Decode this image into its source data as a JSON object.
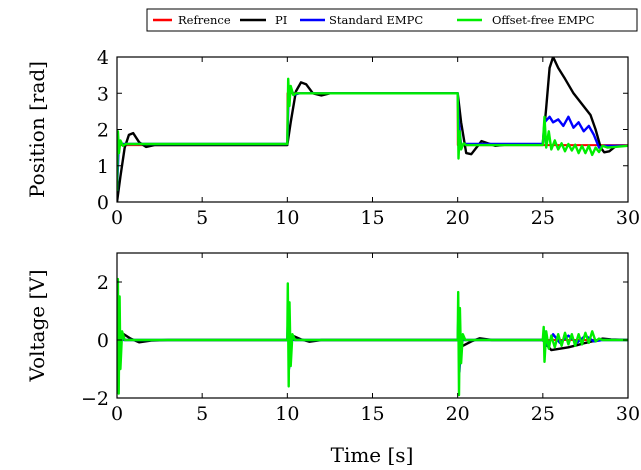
{
  "chart_data": [
    {
      "type": "line",
      "panel": "top",
      "xlabel": "",
      "ylabel": "Position [rad]",
      "xlim": [
        0,
        30
      ],
      "ylim": [
        0,
        4
      ],
      "xticks": [
        "0",
        "5",
        "10",
        "15",
        "20",
        "25",
        "30"
      ],
      "yticks": [
        "0",
        "1",
        "2",
        "3",
        "4"
      ],
      "grid": false,
      "legend_position": "top",
      "series": [
        {
          "name": "Refrence",
          "color": "#ff0000",
          "points": [
            [
              0,
              0
            ],
            [
              0.01,
              1.57
            ],
            [
              10,
              1.57
            ],
            [
              10.01,
              3.0
            ],
            [
              20,
              3.0
            ],
            [
              20.01,
              1.57
            ],
            [
              30,
              1.57
            ]
          ]
        },
        {
          "name": "PI",
          "color": "#000000",
          "points": [
            [
              0,
              0
            ],
            [
              0.2,
              0.7
            ],
            [
              0.45,
              1.5
            ],
            [
              0.7,
              1.85
            ],
            [
              0.95,
              1.9
            ],
            [
              1.3,
              1.65
            ],
            [
              1.7,
              1.52
            ],
            [
              2.2,
              1.57
            ],
            [
              10,
              1.57
            ],
            [
              10.2,
              2.2
            ],
            [
              10.5,
              3.05
            ],
            [
              10.8,
              3.3
            ],
            [
              11.1,
              3.25
            ],
            [
              11.5,
              3.0
            ],
            [
              12.0,
              2.94
            ],
            [
              12.5,
              3.0
            ],
            [
              20,
              3.0
            ],
            [
              20.2,
              2.2
            ],
            [
              20.5,
              1.35
            ],
            [
              20.8,
              1.32
            ],
            [
              21.1,
              1.5
            ],
            [
              21.4,
              1.68
            ],
            [
              21.7,
              1.63
            ],
            [
              22.2,
              1.55
            ],
            [
              22.8,
              1.58
            ],
            [
              25,
              1.58
            ],
            [
              25.2,
              2.6
            ],
            [
              25.4,
              3.7
            ],
            [
              25.6,
              4.0
            ],
            [
              25.9,
              3.7
            ],
            [
              26.3,
              3.4
            ],
            [
              26.8,
              3.0
            ],
            [
              27.3,
              2.7
            ],
            [
              27.8,
              2.4
            ],
            [
              28.1,
              2.0
            ],
            [
              28.4,
              1.5
            ],
            [
              28.6,
              1.37
            ],
            [
              28.9,
              1.4
            ],
            [
              29.3,
              1.55
            ],
            [
              30,
              1.55
            ]
          ]
        },
        {
          "name": "Standard EMPC",
          "color": "#0000ff",
          "points": [
            [
              0,
              0.3
            ],
            [
              0.1,
              1.6
            ],
            [
              10,
              1.6
            ],
            [
              10.05,
              2.6
            ],
            [
              10.2,
              3.1
            ],
            [
              10.4,
              2.96
            ],
            [
              10.7,
              3.0
            ],
            [
              20,
              3.0
            ],
            [
              20.05,
              2.3
            ],
            [
              20.2,
              1.55
            ],
            [
              20.4,
              1.6
            ],
            [
              25,
              1.6
            ],
            [
              25.1,
              2.2
            ],
            [
              25.4,
              2.35
            ],
            [
              25.6,
              2.2
            ],
            [
              25.9,
              2.28
            ],
            [
              26.2,
              2.1
            ],
            [
              26.5,
              2.35
            ],
            [
              26.8,
              2.05
            ],
            [
              27.1,
              2.2
            ],
            [
              27.4,
              1.95
            ],
            [
              27.7,
              2.1
            ],
            [
              28.0,
              1.85
            ],
            [
              28.3,
              1.5
            ],
            [
              28.6,
              1.55
            ],
            [
              30,
              1.55
            ]
          ]
        },
        {
          "name": "Offset-free EMPC",
          "color": "#00ee00",
          "points": [
            [
              0,
              0.3
            ],
            [
              0.05,
              1.95
            ],
            [
              0.12,
              1.35
            ],
            [
              0.2,
              1.7
            ],
            [
              0.35,
              1.55
            ],
            [
              0.5,
              1.6
            ],
            [
              10,
              1.6
            ],
            [
              10.05,
              3.4
            ],
            [
              10.12,
              2.65
            ],
            [
              10.2,
              3.2
            ],
            [
              10.35,
              2.95
            ],
            [
              10.5,
              3.0
            ],
            [
              20,
              3.0
            ],
            [
              20.05,
              1.2
            ],
            [
              20.12,
              1.95
            ],
            [
              20.2,
              1.45
            ],
            [
              20.35,
              1.62
            ],
            [
              20.5,
              1.57
            ],
            [
              25,
              1.57
            ],
            [
              25.1,
              2.35
            ],
            [
              25.2,
              1.5
            ],
            [
              25.35,
              1.95
            ],
            [
              25.5,
              1.45
            ],
            [
              25.7,
              1.7
            ],
            [
              25.9,
              1.45
            ],
            [
              26.1,
              1.62
            ],
            [
              26.3,
              1.4
            ],
            [
              26.5,
              1.6
            ],
            [
              26.7,
              1.42
            ],
            [
              26.9,
              1.58
            ],
            [
              27.1,
              1.35
            ],
            [
              27.3,
              1.55
            ],
            [
              27.5,
              1.35
            ],
            [
              27.7,
              1.55
            ],
            [
              27.9,
              1.3
            ],
            [
              28.1,
              1.5
            ],
            [
              28.3,
              1.38
            ],
            [
              28.5,
              1.55
            ],
            [
              28.8,
              1.5
            ],
            [
              30,
              1.55
            ]
          ]
        }
      ]
    },
    {
      "type": "line",
      "panel": "bottom",
      "xlabel": "Time [s]",
      "ylabel": "Voltage [V]",
      "xlim": [
        0,
        30
      ],
      "ylim": [
        -2,
        3
      ],
      "xticks": [
        "0",
        "5",
        "10",
        "15",
        "20",
        "25",
        "30"
      ],
      "yticks": [
        "−2",
        "0",
        "2"
      ],
      "ytick_values": [
        -2,
        0,
        2
      ],
      "grid": false,
      "series": [
        {
          "name": "Refrence",
          "color": "#ff0000",
          "points": [
            [
              0,
              0
            ],
            [
              30,
              0
            ]
          ]
        },
        {
          "name": "PI",
          "color": "#000000",
          "points": [
            [
              0,
              0.25
            ],
            [
              0.4,
              0.2
            ],
            [
              0.8,
              0.05
            ],
            [
              1.3,
              -0.08
            ],
            [
              2.0,
              -0.02
            ],
            [
              3,
              0
            ],
            [
              10,
              0
            ],
            [
              10.3,
              0.15
            ],
            [
              10.8,
              0.02
            ],
            [
              11.3,
              -0.06
            ],
            [
              12,
              0
            ],
            [
              20,
              0
            ],
            [
              20.3,
              -0.2
            ],
            [
              20.8,
              -0.05
            ],
            [
              21.3,
              0.06
            ],
            [
              22,
              0
            ],
            [
              25,
              0
            ],
            [
              25.2,
              -0.15
            ],
            [
              25.5,
              -0.35
            ],
            [
              26,
              -0.3
            ],
            [
              26.5,
              -0.25
            ],
            [
              27,
              -0.18
            ],
            [
              27.5,
              -0.1
            ],
            [
              28,
              -0.03
            ],
            [
              28.5,
              0.05
            ],
            [
              29,
              0.02
            ],
            [
              30,
              0
            ]
          ]
        },
        {
          "name": "Standard EMPC",
          "color": "#0000ff",
          "points": [
            [
              0,
              0
            ],
            [
              0.05,
              1.2
            ],
            [
              0.1,
              -1.0
            ],
            [
              0.2,
              0.1
            ],
            [
              0.4,
              0
            ],
            [
              10,
              0
            ],
            [
              10.05,
              1.1
            ],
            [
              10.1,
              -1.0
            ],
            [
              10.2,
              0.05
            ],
            [
              10.4,
              0
            ],
            [
              20,
              0
            ],
            [
              20.05,
              1.0
            ],
            [
              20.1,
              -1.1
            ],
            [
              20.2,
              0
            ],
            [
              25,
              0
            ],
            [
              25.1,
              0.3
            ],
            [
              25.3,
              -0.2
            ],
            [
              25.6,
              0.2
            ],
            [
              26,
              -0.1
            ],
            [
              26.5,
              0.15
            ],
            [
              27,
              -0.1
            ],
            [
              27.5,
              0.15
            ],
            [
              28,
              -0.05
            ],
            [
              28.5,
              0
            ],
            [
              30,
              0
            ]
          ]
        },
        {
          "name": "Offset-free EMPC",
          "color": "#00ee00",
          "points": [
            [
              0,
              0
            ],
            [
              0.05,
              2.1
            ],
            [
              0.1,
              -1.85
            ],
            [
              0.15,
              1.5
            ],
            [
              0.2,
              -1.0
            ],
            [
              0.3,
              0.3
            ],
            [
              0.45,
              0
            ],
            [
              10,
              0
            ],
            [
              10.03,
              1.95
            ],
            [
              10.08,
              -1.6
            ],
            [
              10.13,
              1.3
            ],
            [
              10.2,
              -0.9
            ],
            [
              10.3,
              0.2
            ],
            [
              10.45,
              0
            ],
            [
              20,
              0
            ],
            [
              20.03,
              1.65
            ],
            [
              20.08,
              -1.9
            ],
            [
              20.13,
              1.1
            ],
            [
              20.2,
              -0.8
            ],
            [
              20.3,
              0.2
            ],
            [
              20.45,
              0
            ],
            [
              25,
              0
            ],
            [
              25.05,
              0.45
            ],
            [
              25.1,
              -0.75
            ],
            [
              25.2,
              0.3
            ],
            [
              25.35,
              -0.3
            ],
            [
              25.5,
              0.15
            ],
            [
              25.7,
              -0.25
            ],
            [
              25.9,
              0.2
            ],
            [
              26.1,
              -0.2
            ],
            [
              26.3,
              0.25
            ],
            [
              26.5,
              -0.15
            ],
            [
              26.7,
              0.2
            ],
            [
              26.9,
              -0.2
            ],
            [
              27.1,
              0.2
            ],
            [
              27.3,
              -0.15
            ],
            [
              27.5,
              0.25
            ],
            [
              27.7,
              -0.1
            ],
            [
              27.9,
              0.3
            ],
            [
              28.1,
              -0.05
            ],
            [
              28.3,
              0.05
            ],
            [
              28.5,
              0
            ],
            [
              30,
              0
            ]
          ]
        }
      ]
    }
  ]
}
